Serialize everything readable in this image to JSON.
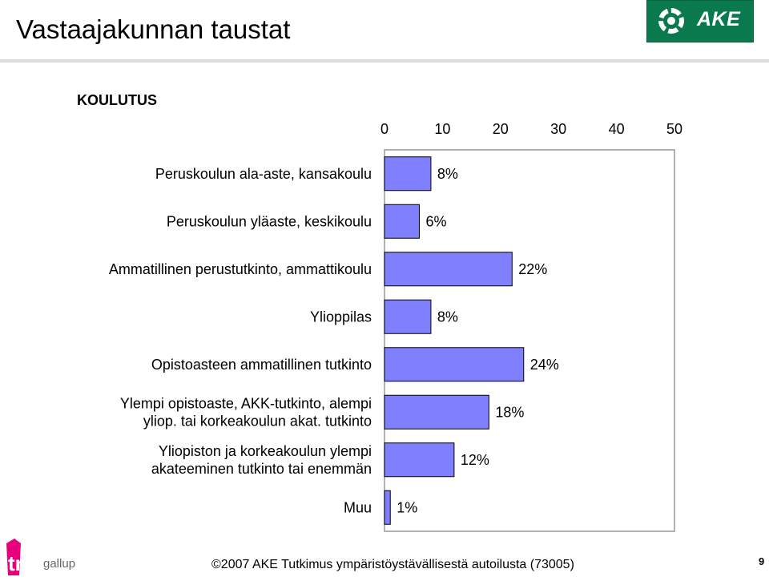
{
  "header": {
    "title": "Vastaajakunnan taustat",
    "logo_text": "AKE",
    "section_label": "KOULUTUS"
  },
  "chart_data": {
    "type": "bar",
    "orientation": "horizontal",
    "title": "KOULUTUS",
    "x_ticks": [
      "0",
      "10",
      "20",
      "30",
      "40",
      "50"
    ],
    "xlim": [
      0,
      50
    ],
    "categories": [
      [
        "Peruskoulun ala-aste, kansakoulu"
      ],
      [
        "Peruskoulun yläaste, keskikoulu"
      ],
      [
        "Ammatillinen perustutkinto, ammattikoulu"
      ],
      [
        "Ylioppilas"
      ],
      [
        "Opistoasteen ammatillinen tutkinto"
      ],
      [
        "Ylempi opistoaste, AKK-tutkinto, alempi",
        "yliop. tai korkeakoulun akat. tutkinto"
      ],
      [
        "Yliopiston ja korkeakoulun ylempi",
        "akateeminen tutkinto tai enemmän"
      ],
      [
        "Muu"
      ]
    ],
    "values": [
      8,
      6,
      22,
      8,
      24,
      18,
      12,
      1
    ],
    "data_labels": [
      "8%",
      "6%",
      "22%",
      "8%",
      "24%",
      "18%",
      "12%",
      "1%"
    ],
    "bar_color": "#8080ff"
  },
  "footer": {
    "text": "©2007 AKE  Tutkimus ympäristöystävällisestä autoilusta (73005)",
    "page": "9",
    "brand_tns": "tns",
    "brand_gallup": "gallup"
  }
}
